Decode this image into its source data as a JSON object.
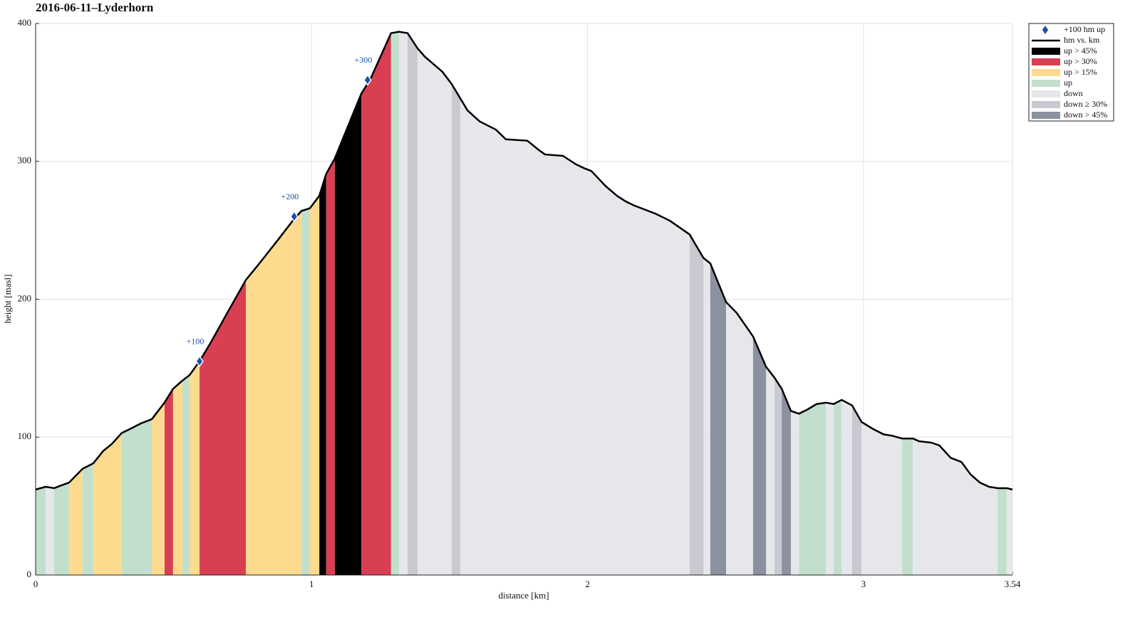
{
  "chart_data": {
    "type": "area",
    "title": "2016-06-11–Lyderhorn",
    "xlabel": "distance [km]",
    "ylabel": "height [masl]",
    "xlim": [
      0,
      3.54
    ],
    "xticks": [
      0,
      1,
      2,
      3,
      3.54
    ],
    "ylim": [
      0,
      400
    ],
    "yticks": [
      0,
      100,
      200,
      300,
      400
    ],
    "grid": true,
    "legend": "outside upper right",
    "markers": {
      "name": "+100 hm up",
      "color": "#1f4fa8",
      "x": [
        0.594,
        0.937,
        1.203
      ],
      "values": [
        155,
        260,
        359
      ],
      "labels": [
        "+100",
        "+200",
        "+300"
      ]
    },
    "profile": {
      "name": "hm vs. km",
      "color": "#000000",
      "x": [
        0,
        0.036,
        0.067,
        0.093,
        0.121,
        0.17,
        0.209,
        0.245,
        0.276,
        0.312,
        0.343,
        0.382,
        0.421,
        0.467,
        0.498,
        0.532,
        0.558,
        0.594,
        0.633,
        0.658,
        0.697,
        0.762,
        0.811,
        0.878,
        0.932,
        0.963,
        0.994,
        1.028,
        1.053,
        1.084,
        1.18,
        1.214,
        1.288,
        1.317,
        1.348,
        1.384,
        1.41,
        1.474,
        1.508,
        1.565,
        1.609,
        1.668,
        1.704,
        1.782,
        1.825,
        1.846,
        1.911,
        1.957,
        1.988,
        2.014,
        2.066,
        2.107,
        2.138,
        2.169,
        2.247,
        2.298,
        2.37,
        2.42,
        2.445,
        2.502,
        2.541,
        2.6,
        2.647,
        2.678,
        2.704,
        2.737,
        2.766,
        2.797,
        2.83,
        2.864,
        2.892,
        2.921,
        2.959,
        2.993,
        3.034,
        3.073,
        3.104,
        3.14,
        3.179,
        3.202,
        3.246,
        3.275,
        3.316,
        3.355,
        3.388,
        3.422,
        3.455,
        3.486,
        3.519,
        3.54
      ],
      "values": [
        62,
        64,
        63,
        65,
        67,
        77,
        81,
        90,
        95,
        103,
        106,
        110,
        113,
        125,
        135,
        141,
        145,
        155,
        168,
        177,
        191,
        214,
        226,
        243,
        257,
        264,
        266,
        275,
        291,
        302,
        349,
        360,
        393,
        394,
        393,
        382,
        376,
        365,
        356,
        337,
        329,
        323,
        316,
        315,
        308,
        305,
        304,
        298,
        295,
        293,
        282,
        275,
        271,
        268,
        262,
        257,
        247,
        230,
        226,
        198,
        190,
        173,
        151,
        143,
        135,
        119,
        117,
        120,
        124,
        125,
        124,
        127,
        123,
        111,
        106,
        102,
        101,
        99,
        99,
        97,
        96,
        94,
        85,
        82,
        73,
        67,
        64,
        63,
        63,
        62
      ]
    },
    "bands": [
      {
        "name": "up > 45%",
        "color": "#000000",
        "spans": [
          [
            1.028,
            1.053
          ],
          [
            1.084,
            1.18
          ]
        ]
      },
      {
        "name": "up > 30%",
        "color": "#d93f53",
        "spans": [
          [
            0.467,
            0.498
          ],
          [
            0.594,
            0.762
          ],
          [
            1.053,
            1.084
          ],
          [
            1.18,
            1.288
          ]
        ]
      },
      {
        "name": "up > 15%",
        "color": "#fddb8e",
        "spans": [
          [
            0.121,
            0.17
          ],
          [
            0.209,
            0.312
          ],
          [
            0.421,
            0.467
          ],
          [
            0.498,
            0.532
          ],
          [
            0.558,
            0.594
          ],
          [
            0.762,
            0.963
          ],
          [
            0.994,
            1.028
          ]
        ]
      },
      {
        "name": "up",
        "color": "#c2dfcd",
        "spans": [
          [
            0,
            0.036
          ],
          [
            0.067,
            0.121
          ],
          [
            0.17,
            0.209
          ],
          [
            0.312,
            0.421
          ],
          [
            0.532,
            0.558
          ],
          [
            0.963,
            0.994
          ],
          [
            1.288,
            1.317
          ],
          [
            2.766,
            2.864
          ],
          [
            2.892,
            2.921
          ],
          [
            3.14,
            3.179
          ],
          [
            3.486,
            3.519
          ]
        ]
      },
      {
        "name": "down",
        "color": "#e6e7eb",
        "spans": [
          [
            0.036,
            0.067
          ],
          [
            1.317,
            1.348
          ],
          [
            1.384,
            1.508
          ],
          [
            1.539,
            2.37
          ],
          [
            2.42,
            2.445
          ],
          [
            2.502,
            2.6
          ],
          [
            2.647,
            2.678
          ],
          [
            2.737,
            2.766
          ],
          [
            2.864,
            2.892
          ],
          [
            2.921,
            2.959
          ],
          [
            2.993,
            3.14
          ],
          [
            3.179,
            3.486
          ],
          [
            3.519,
            3.54
          ]
        ]
      },
      {
        "name": "down ≥ 30%",
        "color": "#c8c9d1",
        "spans": [
          [
            1.348,
            1.384
          ],
          [
            1.508,
            1.539
          ],
          [
            2.37,
            2.42
          ],
          [
            2.678,
            2.704
          ],
          [
            2.959,
            2.993
          ]
        ]
      },
      {
        "name": "down > 45%",
        "color": "#8b919e",
        "spans": [
          [
            2.445,
            2.502
          ],
          [
            2.6,
            2.647
          ],
          [
            2.704,
            2.737
          ]
        ]
      }
    ]
  }
}
